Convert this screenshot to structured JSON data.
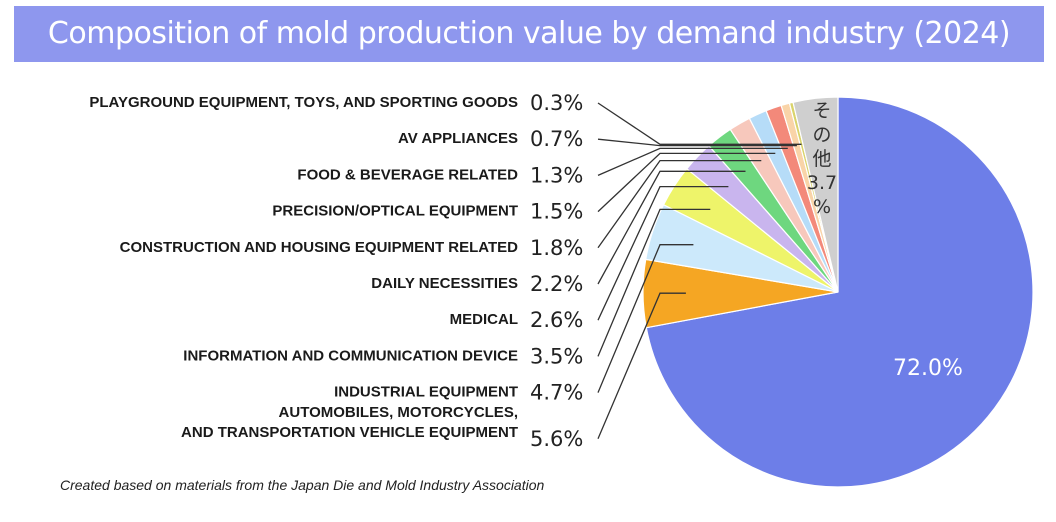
{
  "title": "Composition of mold production value by demand industry (2024)",
  "source": "Created based on materials from the Japan Die and Mold Industry Association",
  "chart_data": {
    "type": "pie",
    "title": "Composition of mold production value by demand industry (2024)",
    "unit": "%",
    "slices": [
      {
        "label": "",
        "value": 72.0,
        "display": "72.0%",
        "color": "#6d7ee8"
      },
      {
        "label": "AUTOMOBILES, MOTORCYCLES, AND TRANSPORTATION VEHICLE EQUIPMENT",
        "lines": [
          "AUTOMOBILES, MOTORCYCLES,",
          "AND TRANSPORTATION VEHICLE EQUIPMENT"
        ],
        "value": 5.6,
        "display": "5.6%",
        "color": "#f5a623"
      },
      {
        "label": "INDUSTRIAL EQUIPMENT",
        "lines": [
          "INDUSTRIAL EQUIPMENT"
        ],
        "value": 4.7,
        "display": "4.7%",
        "color": "#cce9fb"
      },
      {
        "label": "INFORMATION AND COMMUNICATION DEVICE",
        "lines": [
          "INFORMATION AND COMMUNICATION DEVICE"
        ],
        "value": 3.5,
        "display": "3.5%",
        "color": "#eef46a"
      },
      {
        "label": "MEDICAL",
        "lines": [
          "MEDICAL"
        ],
        "value": 2.6,
        "display": "2.6%",
        "color": "#c9b5ee"
      },
      {
        "label": "DAILY NECESSITIES",
        "lines": [
          "DAILY NECESSITIES"
        ],
        "value": 2.2,
        "display": "2.2%",
        "color": "#6ed77f"
      },
      {
        "label": "CONSTRUCTION AND HOUSING EQUIPMENT RELATED",
        "lines": [
          "CONSTRUCTION AND HOUSING EQUIPMENT RELATED"
        ],
        "value": 1.8,
        "display": "1.8%",
        "color": "#f7c8bc"
      },
      {
        "label": "PRECISION/OPTICAL EQUIPMENT",
        "lines": [
          "PRECISION/OPTICAL EQUIPMENT"
        ],
        "value": 1.5,
        "display": "1.5%",
        "color": "#b6dcf8"
      },
      {
        "label": "FOOD & BEVERAGE RELATED",
        "lines": [
          "FOOD & BEVERAGE RELATED"
        ],
        "value": 1.3,
        "display": "1.3%",
        "color": "#f3897a"
      },
      {
        "label": "AV APPLIANCES",
        "lines": [
          "AV APPLIANCES"
        ],
        "value": 0.7,
        "display": "0.7%",
        "color": "#f9d4a8"
      },
      {
        "label": "PLAYGROUND EQUIPMENT, TOYS, AND SPORTING GOODS",
        "lines": [
          "PLAYGROUND EQUIPMENT, TOYS, AND SPORTING GOODS"
        ],
        "value": 0.3,
        "display": "0.3%",
        "color": "#d9d36b"
      },
      {
        "label": "その他",
        "lines": [
          "その他"
        ],
        "value": 3.7,
        "display": "3.7%",
        "color": "#cfcfcf"
      }
    ]
  }
}
